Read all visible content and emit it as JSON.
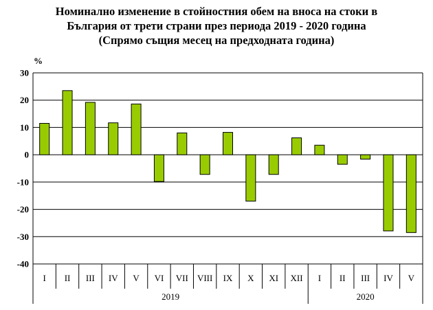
{
  "title_lines": [
    "Номинално изменение в стойностния обем   на вноса на стоки в",
    "България от трети страни през периода 2019 - 2020 година",
    "(Спрямо същия месец на предходната година)"
  ],
  "colors": {
    "bar": "#99CC00",
    "bar_stroke": "#000000",
    "grid": "#000000"
  },
  "chart_data": {
    "type": "bar",
    "ylabel": "%",
    "ylim": [
      -40,
      30
    ],
    "yticks": [
      30,
      20,
      10,
      0,
      -10,
      -20,
      -30,
      -40
    ],
    "grid": true,
    "categories": [
      "I",
      "II",
      "III",
      "IV",
      "V",
      "VI",
      "VII",
      "VIII",
      "IX",
      "X",
      "XI",
      "XII",
      "I",
      "II",
      "III",
      "IV",
      "V"
    ],
    "years": [
      {
        "label": "2019",
        "count": 12
      },
      {
        "label": "2020",
        "count": 5
      }
    ],
    "values": [
      11.5,
      23.5,
      19.2,
      11.7,
      18.6,
      -9.8,
      8.0,
      -7.2,
      8.2,
      -17.0,
      -7.2,
      6.2,
      3.5,
      -3.5,
      -1.6,
      -27.9,
      -28.5
    ]
  }
}
